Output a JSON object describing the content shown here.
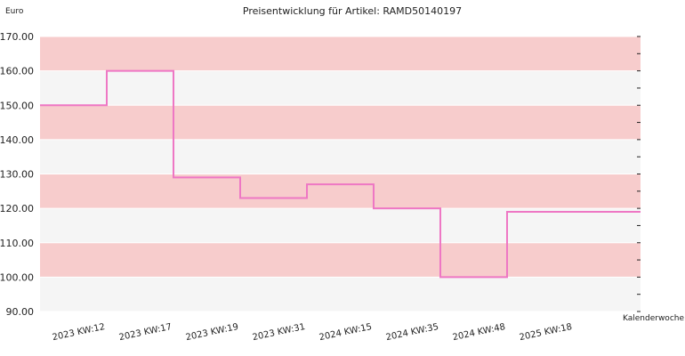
{
  "chart_data": {
    "type": "line",
    "step": true,
    "title": "Preisentwicklung für Artikel: RAMD50140197",
    "ylabel": "Euro",
    "xlabel": "Kalenderwoche",
    "ylim": [
      90,
      170
    ],
    "yticks": [
      "90.00",
      "100.00",
      "110.00",
      "120.00",
      "130.00",
      "140.00",
      "150.00",
      "160.00",
      "170.00"
    ],
    "categories": [
      "2023 KW:12",
      "2023 KW:17",
      "2023 KW:19",
      "2023 KW:31",
      "2024 KW:15",
      "2024 KW:35",
      "2024 KW:48",
      "2025 KW:18"
    ],
    "series": [
      {
        "values": [
          150,
          160,
          129,
          123,
          127,
          120,
          100,
          119
        ]
      }
    ],
    "grid": true,
    "band_colors": [
      "#f7cccc",
      "#f5f5f5"
    ],
    "line_color": "#ee77c4"
  }
}
